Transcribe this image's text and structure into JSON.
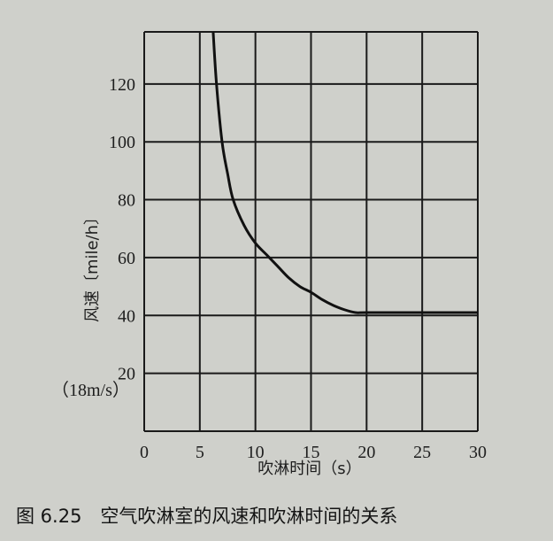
{
  "chart_data": {
    "type": "line",
    "title": "",
    "xlabel": "吹淋时间（s）",
    "ylabel": "风速〔mile/h〕",
    "y_annotation": "（18m/s）",
    "xlim": [
      0,
      30
    ],
    "ylim": [
      0,
      138
    ],
    "x_ticks": [
      "0",
      "5",
      "10",
      "15",
      "20",
      "25",
      "30"
    ],
    "y_ticks": [
      "20",
      "40",
      "60",
      "80",
      "100",
      "120"
    ],
    "grid": true,
    "series": [
      {
        "x": [
          6.2,
          6.5,
          7,
          7.5,
          8,
          9,
          10,
          11,
          12,
          13,
          14,
          15,
          16,
          17,
          18,
          19,
          20,
          25,
          30
        ],
        "values": [
          138,
          120,
          100,
          89,
          80,
          71,
          65,
          61,
          57,
          53,
          50,
          48,
          45.5,
          43.5,
          42,
          41,
          41,
          41,
          41
        ]
      }
    ],
    "colors": {
      "line": "#111111",
      "grid": "#1a1a1a",
      "paper": "#cfd0cb"
    }
  },
  "caption": "图 6.25　空气吹淋室的风速和吹淋时间的关系"
}
